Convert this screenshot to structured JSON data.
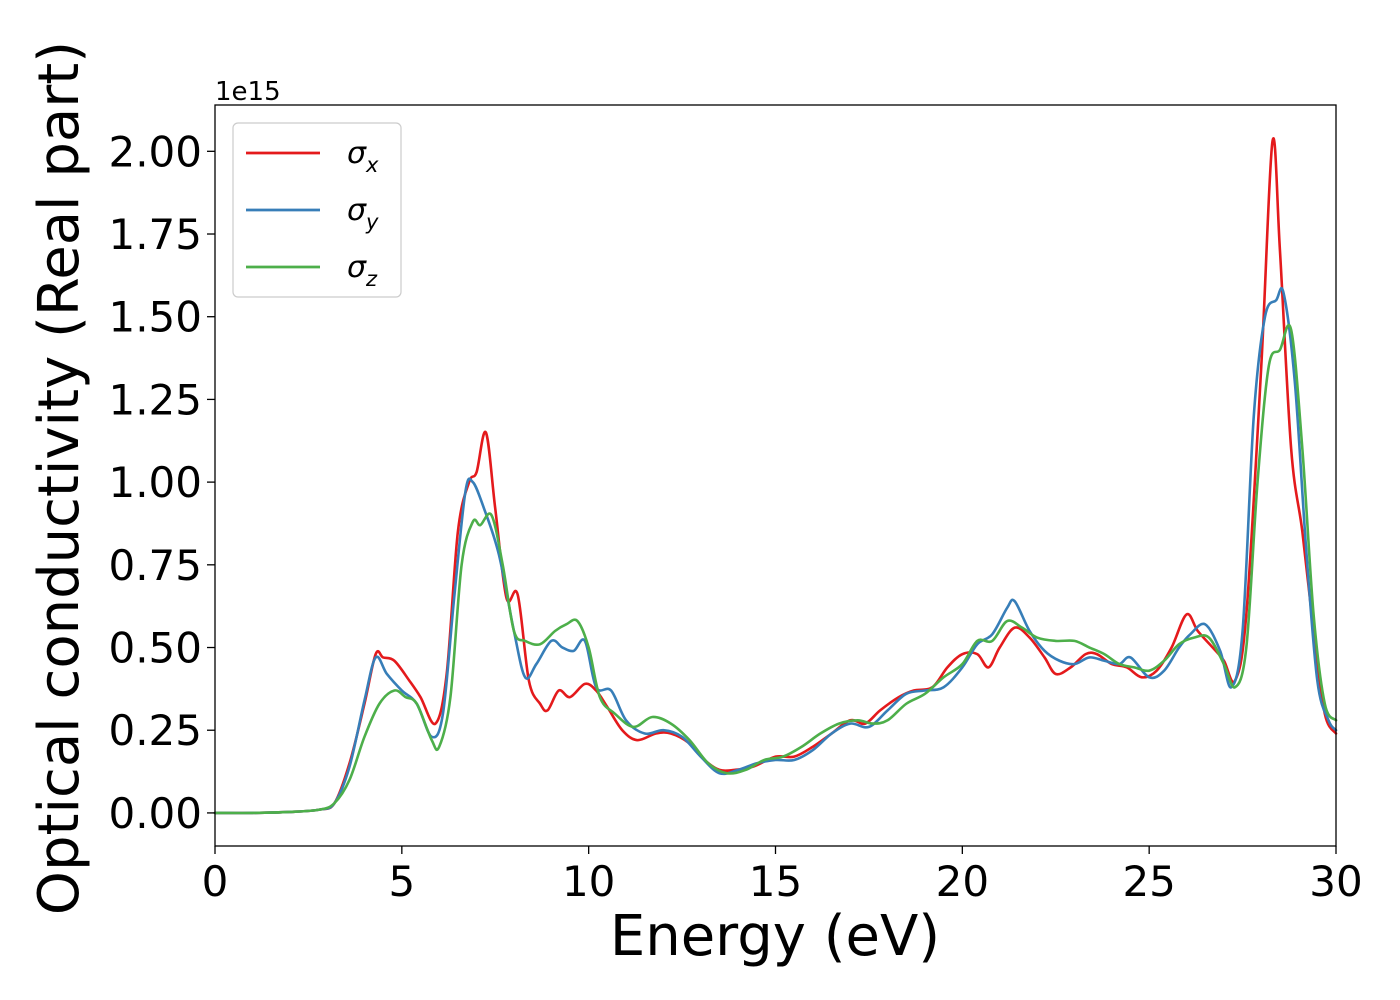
{
  "chart_data": {
    "type": "line",
    "title": "",
    "xlabel": "Energy (eV)",
    "ylabel": "Optical conductivity (Real part)",
    "y_offset_label": "1e15",
    "xlim": [
      0,
      30
    ],
    "ylim": [
      -0.1,
      2.14
    ],
    "xticks": [
      0,
      5,
      10,
      15,
      20,
      25,
      30
    ],
    "yticks": [
      0.0,
      0.25,
      0.5,
      0.75,
      1.0,
      1.25,
      1.5,
      1.75,
      2.0
    ],
    "xtick_labels": [
      "0",
      "5",
      "10",
      "15",
      "20",
      "25",
      "30"
    ],
    "ytick_labels": [
      "0.00",
      "0.25",
      "0.50",
      "0.75",
      "1.00",
      "1.25",
      "1.50",
      "1.75",
      "2.00"
    ],
    "grid": false,
    "legend_position": "top-left",
    "series": [
      {
        "name": "σx",
        "symbol": "σ",
        "subscript": "x",
        "color": "#e41a1c",
        "points": [
          [
            0,
            0
          ],
          [
            1,
            0
          ],
          [
            2,
            0.003
          ],
          [
            2.8,
            0.01
          ],
          [
            3.2,
            0.03
          ],
          [
            3.6,
            0.15
          ],
          [
            4.0,
            0.33
          ],
          [
            4.3,
            0.48
          ],
          [
            4.5,
            0.47
          ],
          [
            4.8,
            0.46
          ],
          [
            5.2,
            0.4
          ],
          [
            5.5,
            0.35
          ],
          [
            5.9,
            0.27
          ],
          [
            6.2,
            0.42
          ],
          [
            6.5,
            0.85
          ],
          [
            6.8,
            1.0
          ],
          [
            7.0,
            1.03
          ],
          [
            7.25,
            1.15
          ],
          [
            7.5,
            0.92
          ],
          [
            7.8,
            0.65
          ],
          [
            8.1,
            0.66
          ],
          [
            8.4,
            0.4
          ],
          [
            8.7,
            0.33
          ],
          [
            8.9,
            0.31
          ],
          [
            9.2,
            0.37
          ],
          [
            9.5,
            0.35
          ],
          [
            9.9,
            0.39
          ],
          [
            10.2,
            0.37
          ],
          [
            10.5,
            0.32
          ],
          [
            10.9,
            0.25
          ],
          [
            11.3,
            0.22
          ],
          [
            11.8,
            0.24
          ],
          [
            12.2,
            0.24
          ],
          [
            12.7,
            0.21
          ],
          [
            13.1,
            0.16
          ],
          [
            13.5,
            0.13
          ],
          [
            13.9,
            0.13
          ],
          [
            14.4,
            0.14
          ],
          [
            15.0,
            0.17
          ],
          [
            15.5,
            0.17
          ],
          [
            16.0,
            0.2
          ],
          [
            16.5,
            0.24
          ],
          [
            17.0,
            0.28
          ],
          [
            17.4,
            0.27
          ],
          [
            17.8,
            0.31
          ],
          [
            18.3,
            0.35
          ],
          [
            18.7,
            0.37
          ],
          [
            19.2,
            0.38
          ],
          [
            19.6,
            0.44
          ],
          [
            20.0,
            0.48
          ],
          [
            20.4,
            0.48
          ],
          [
            20.7,
            0.44
          ],
          [
            21.0,
            0.5
          ],
          [
            21.4,
            0.56
          ],
          [
            21.8,
            0.53
          ],
          [
            22.2,
            0.47
          ],
          [
            22.5,
            0.42
          ],
          [
            22.9,
            0.44
          ],
          [
            23.3,
            0.48
          ],
          [
            23.6,
            0.48
          ],
          [
            24.0,
            0.45
          ],
          [
            24.4,
            0.44
          ],
          [
            24.8,
            0.41
          ],
          [
            25.2,
            0.43
          ],
          [
            25.6,
            0.5
          ],
          [
            26.0,
            0.6
          ],
          [
            26.3,
            0.55
          ],
          [
            26.7,
            0.5
          ],
          [
            27.0,
            0.46
          ],
          [
            27.3,
            0.4
          ],
          [
            27.6,
            0.6
          ],
          [
            28.0,
            1.35
          ],
          [
            28.3,
            2.03
          ],
          [
            28.5,
            1.7
          ],
          [
            28.8,
            1.1
          ],
          [
            29.1,
            0.85
          ],
          [
            29.4,
            0.55
          ],
          [
            29.7,
            0.3
          ],
          [
            30,
            0.24
          ]
        ]
      },
      {
        "name": "σy",
        "symbol": "σ",
        "subscript": "y",
        "color": "#377eb8",
        "points": [
          [
            0,
            0
          ],
          [
            1,
            0
          ],
          [
            2,
            0.003
          ],
          [
            2.8,
            0.01
          ],
          [
            3.2,
            0.03
          ],
          [
            3.6,
            0.14
          ],
          [
            4.0,
            0.34
          ],
          [
            4.3,
            0.47
          ],
          [
            4.6,
            0.42
          ],
          [
            5.0,
            0.37
          ],
          [
            5.4,
            0.33
          ],
          [
            5.8,
            0.23
          ],
          [
            6.1,
            0.3
          ],
          [
            6.4,
            0.65
          ],
          [
            6.7,
            0.97
          ],
          [
            6.9,
            1.0
          ],
          [
            7.2,
            0.92
          ],
          [
            7.6,
            0.78
          ],
          [
            8.0,
            0.55
          ],
          [
            8.3,
            0.41
          ],
          [
            8.6,
            0.45
          ],
          [
            9.0,
            0.52
          ],
          [
            9.3,
            0.5
          ],
          [
            9.6,
            0.49
          ],
          [
            9.9,
            0.52
          ],
          [
            10.2,
            0.38
          ],
          [
            10.6,
            0.37
          ],
          [
            11.0,
            0.28
          ],
          [
            11.5,
            0.24
          ],
          [
            12.0,
            0.25
          ],
          [
            12.5,
            0.23
          ],
          [
            13.0,
            0.17
          ],
          [
            13.5,
            0.12
          ],
          [
            14.0,
            0.13
          ],
          [
            14.5,
            0.15
          ],
          [
            15.0,
            0.16
          ],
          [
            15.5,
            0.16
          ],
          [
            16.0,
            0.19
          ],
          [
            16.5,
            0.24
          ],
          [
            17.0,
            0.27
          ],
          [
            17.5,
            0.26
          ],
          [
            18.0,
            0.31
          ],
          [
            18.5,
            0.36
          ],
          [
            19.0,
            0.37
          ],
          [
            19.5,
            0.38
          ],
          [
            20.0,
            0.44
          ],
          [
            20.4,
            0.51
          ],
          [
            20.8,
            0.54
          ],
          [
            21.2,
            0.62
          ],
          [
            21.4,
            0.64
          ],
          [
            21.8,
            0.55
          ],
          [
            22.2,
            0.49
          ],
          [
            22.6,
            0.46
          ],
          [
            23.0,
            0.45
          ],
          [
            23.4,
            0.47
          ],
          [
            23.8,
            0.46
          ],
          [
            24.2,
            0.45
          ],
          [
            24.5,
            0.47
          ],
          [
            25.0,
            0.41
          ],
          [
            25.4,
            0.43
          ],
          [
            25.8,
            0.5
          ],
          [
            26.1,
            0.54
          ],
          [
            26.5,
            0.57
          ],
          [
            26.9,
            0.49
          ],
          [
            27.2,
            0.38
          ],
          [
            27.5,
            0.55
          ],
          [
            27.8,
            1.2
          ],
          [
            28.1,
            1.5
          ],
          [
            28.4,
            1.55
          ],
          [
            28.6,
            1.57
          ],
          [
            28.9,
            1.3
          ],
          [
            29.2,
            0.8
          ],
          [
            29.5,
            0.4
          ],
          [
            29.8,
            0.28
          ],
          [
            30,
            0.25
          ]
        ]
      },
      {
        "name": "σz",
        "symbol": "σ",
        "subscript": "z",
        "color": "#4daf4a",
        "points": [
          [
            0,
            0
          ],
          [
            1,
            0
          ],
          [
            2,
            0.003
          ],
          [
            2.8,
            0.01
          ],
          [
            3.2,
            0.03
          ],
          [
            3.6,
            0.1
          ],
          [
            4.0,
            0.23
          ],
          [
            4.4,
            0.33
          ],
          [
            4.8,
            0.37
          ],
          [
            5.1,
            0.35
          ],
          [
            5.4,
            0.33
          ],
          [
            5.8,
            0.22
          ],
          [
            6.0,
            0.2
          ],
          [
            6.3,
            0.35
          ],
          [
            6.6,
            0.75
          ],
          [
            6.9,
            0.88
          ],
          [
            7.1,
            0.87
          ],
          [
            7.4,
            0.9
          ],
          [
            7.7,
            0.75
          ],
          [
            8.0,
            0.55
          ],
          [
            8.3,
            0.52
          ],
          [
            8.7,
            0.51
          ],
          [
            9.1,
            0.55
          ],
          [
            9.4,
            0.57
          ],
          [
            9.7,
            0.58
          ],
          [
            10.0,
            0.5
          ],
          [
            10.3,
            0.35
          ],
          [
            10.7,
            0.3
          ],
          [
            11.2,
            0.26
          ],
          [
            11.7,
            0.29
          ],
          [
            12.2,
            0.27
          ],
          [
            12.7,
            0.22
          ],
          [
            13.2,
            0.15
          ],
          [
            13.7,
            0.12
          ],
          [
            14.2,
            0.13
          ],
          [
            14.7,
            0.16
          ],
          [
            15.2,
            0.17
          ],
          [
            15.7,
            0.2
          ],
          [
            16.2,
            0.24
          ],
          [
            16.7,
            0.27
          ],
          [
            17.2,
            0.28
          ],
          [
            17.6,
            0.27
          ],
          [
            18.0,
            0.28
          ],
          [
            18.5,
            0.33
          ],
          [
            19.0,
            0.36
          ],
          [
            19.5,
            0.41
          ],
          [
            20.0,
            0.45
          ],
          [
            20.4,
            0.52
          ],
          [
            20.8,
            0.52
          ],
          [
            21.2,
            0.58
          ],
          [
            21.6,
            0.56
          ],
          [
            22.0,
            0.53
          ],
          [
            22.5,
            0.52
          ],
          [
            23.0,
            0.52
          ],
          [
            23.4,
            0.5
          ],
          [
            23.8,
            0.48
          ],
          [
            24.2,
            0.45
          ],
          [
            24.6,
            0.44
          ],
          [
            25.0,
            0.43
          ],
          [
            25.4,
            0.46
          ],
          [
            25.8,
            0.51
          ],
          [
            26.2,
            0.53
          ],
          [
            26.6,
            0.53
          ],
          [
            27.0,
            0.45
          ],
          [
            27.3,
            0.38
          ],
          [
            27.6,
            0.5
          ],
          [
            27.9,
            1.0
          ],
          [
            28.2,
            1.35
          ],
          [
            28.5,
            1.4
          ],
          [
            28.8,
            1.46
          ],
          [
            29.1,
            1.1
          ],
          [
            29.4,
            0.6
          ],
          [
            29.7,
            0.33
          ],
          [
            30,
            0.28
          ]
        ]
      }
    ]
  }
}
